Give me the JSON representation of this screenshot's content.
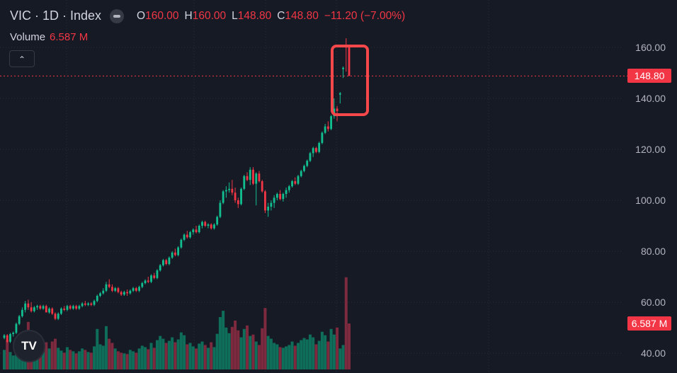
{
  "legend": {
    "symbol": "VIC · 1D · Index",
    "open_key": "O",
    "open": "160.00",
    "high_key": "H",
    "high": "160.00",
    "low_key": "L",
    "low": "148.80",
    "close_key": "C",
    "close": "148.80",
    "change": "−11.20 (−7.00%)",
    "volume_label": "Volume",
    "volume_value": "6.587 M",
    "collapse_icon": "chevron-up-icon"
  },
  "price_axis": {
    "ticks": [
      "160.00",
      "140.00",
      "120.00",
      "100.00",
      "80.00",
      "60.00",
      "40.00"
    ],
    "last_price_tag": "148.80",
    "volume_tag": "6.587 M"
  },
  "logo_text": "TV",
  "colors": {
    "up": "#12c08f",
    "down": "#f23645",
    "vol_up": "#0f6e59",
    "vol_down": "#7d2a3e",
    "highlight": "#f6474b",
    "grid": "#2a2e39"
  },
  "chart_data": {
    "type": "candlestick",
    "title": "VIC · 1D · Index",
    "ylim": [
      38,
      168
    ],
    "yticks": [
      40,
      60,
      80,
      100,
      120,
      140,
      160
    ],
    "last_price": 148.8,
    "volume_unit": "M",
    "highlight_last_candles": 2,
    "ohlcv": [
      [
        46,
        47.5,
        45.5,
        47,
        2.8
      ],
      [
        47,
        47.5,
        44,
        44.5,
        4.2
      ],
      [
        44.5,
        48,
        44,
        47.5,
        2.5
      ],
      [
        47.5,
        48.5,
        46.5,
        48,
        2.0
      ],
      [
        48,
        52,
        47.5,
        51.5,
        3.8
      ],
      [
        51.5,
        55,
        51,
        54.5,
        5.0
      ],
      [
        54.5,
        58,
        54,
        57,
        4.5
      ],
      [
        57,
        60.5,
        56,
        59.5,
        5.5
      ],
      [
        59.5,
        61,
        57,
        58,
        6.8
      ],
      [
        58,
        60,
        56,
        56.5,
        4.6
      ],
      [
        56.5,
        58.5,
        56,
        58,
        3.2
      ],
      [
        58,
        59,
        57,
        58.5,
        2.6
      ],
      [
        58.5,
        59,
        57,
        57.5,
        2.4
      ],
      [
        57.5,
        59,
        57,
        58.5,
        2.8
      ],
      [
        58.5,
        59,
        56,
        56,
        3.9
      ],
      [
        56,
        58,
        55.5,
        57.5,
        3.0
      ],
      [
        57.5,
        58,
        55,
        55.5,
        4.0
      ],
      [
        55.5,
        56,
        53,
        53.5,
        4.4
      ],
      [
        53.5,
        56,
        53,
        55.5,
        3.1
      ],
      [
        55.5,
        58,
        55,
        57.5,
        2.7
      ],
      [
        57.5,
        58.5,
        56.5,
        57,
        2.4
      ],
      [
        57,
        59,
        56.5,
        58.5,
        3.2
      ],
      [
        58.5,
        59,
        57,
        57.5,
        2.8
      ],
      [
        57.5,
        59,
        57,
        58.5,
        2.6
      ],
      [
        58.5,
        59,
        57,
        57.5,
        2.3
      ],
      [
        57.5,
        59,
        57,
        58.5,
        2.6
      ],
      [
        58.5,
        60,
        58,
        59.5,
        3.0
      ],
      [
        59.5,
        60.5,
        58.5,
        59,
        2.8
      ],
      [
        59,
        60,
        58.5,
        59.5,
        2.5
      ],
      [
        59.5,
        60,
        58.5,
        59,
        2.4
      ],
      [
        59,
        61,
        58.5,
        60.5,
        3.3
      ],
      [
        60.5,
        63,
        60,
        62.5,
        5.8
      ],
      [
        62.5,
        64,
        62,
        63.5,
        3.6
      ],
      [
        63.5,
        65.5,
        63,
        64.5,
        3.4
      ],
      [
        64.5,
        68,
        64,
        67,
        6.2
      ],
      [
        67,
        69,
        65.5,
        66,
        4.4
      ],
      [
        66,
        67,
        64,
        64.5,
        3.8
      ],
      [
        64.5,
        66,
        64,
        65.5,
        3.0
      ],
      [
        65.5,
        66,
        63.5,
        64,
        2.6
      ],
      [
        64,
        64.5,
        62.5,
        63,
        2.4
      ],
      [
        63,
        64.5,
        62.5,
        64,
        2.3
      ],
      [
        64,
        65,
        62.5,
        63.5,
        2.2
      ],
      [
        63.5,
        65,
        63,
        64.5,
        2.8
      ],
      [
        64.5,
        66,
        64,
        65.5,
        2.6
      ],
      [
        65.5,
        66,
        64,
        64.5,
        2.4
      ],
      [
        64.5,
        66.5,
        64,
        66,
        3.0
      ],
      [
        66,
        68,
        65.5,
        67.5,
        3.4
      ],
      [
        67.5,
        69,
        67,
        68.5,
        3.2
      ],
      [
        68.5,
        70,
        67.5,
        68,
        2.9
      ],
      [
        68,
        71,
        67.5,
        70.5,
        3.8
      ],
      [
        70.5,
        71.5,
        69,
        69.5,
        3.1
      ],
      [
        69.5,
        73,
        69,
        72.5,
        4.2
      ],
      [
        72.5,
        75,
        72,
        74.5,
        4.8
      ],
      [
        74.5,
        77,
        74,
        76.5,
        4.4
      ],
      [
        76.5,
        77,
        74.5,
        75,
        3.8
      ],
      [
        75,
        78,
        74.5,
        77.5,
        4.1
      ],
      [
        77.5,
        80,
        77,
        79.5,
        4.6
      ],
      [
        79.5,
        81,
        78,
        78.5,
        3.9
      ],
      [
        78.5,
        82,
        78,
        81.5,
        4.3
      ],
      [
        81.5,
        85,
        81,
        84.5,
        5.3
      ],
      [
        84.5,
        87,
        84,
        86.5,
        4.9
      ],
      [
        86.5,
        88,
        85,
        85.5,
        3.6
      ],
      [
        85.5,
        88,
        85,
        87.5,
        3.8
      ],
      [
        87.5,
        89,
        86.5,
        88.5,
        3.3
      ],
      [
        88.5,
        90,
        87,
        87.5,
        3.0
      ],
      [
        87.5,
        90.5,
        87,
        90,
        3.7
      ],
      [
        90,
        92,
        89,
        91.5,
        4.0
      ],
      [
        91.5,
        92,
        89.5,
        90,
        3.5
      ],
      [
        90,
        91,
        89,
        90.5,
        3.1
      ],
      [
        90.5,
        91,
        88.5,
        89,
        3.9
      ],
      [
        89,
        91,
        88.5,
        90.5,
        3.2
      ],
      [
        90.5,
        94,
        90,
        93.5,
        5.1
      ],
      [
        93.5,
        100,
        93,
        99,
        7.5
      ],
      [
        99,
        104,
        98.5,
        103.5,
        8.4
      ],
      [
        103.5,
        105.5,
        101,
        104,
        6.0
      ],
      [
        104,
        107,
        103,
        104.5,
        5.2
      ],
      [
        104.5,
        108,
        102,
        103,
        6.1
      ],
      [
        103,
        105,
        99,
        100,
        7.0
      ],
      [
        100,
        101,
        97,
        98.5,
        5.6
      ],
      [
        98.5,
        105,
        98,
        104.5,
        4.6
      ],
      [
        104.5,
        110,
        104,
        109.5,
        5.8
      ],
      [
        109.5,
        111,
        107.5,
        108,
        6.3
      ],
      [
        108,
        113,
        106,
        112,
        4.8
      ],
      [
        112,
        113,
        106,
        106.5,
        5.0
      ],
      [
        106.5,
        111,
        98,
        110.5,
        4.0
      ],
      [
        110.5,
        111.5,
        107,
        107.5,
        3.5
      ],
      [
        107.5,
        108,
        103,
        103.5,
        5.9
      ],
      [
        103.5,
        104,
        95,
        96,
        8.8
      ],
      [
        96,
        99,
        93.5,
        97.5,
        4.8
      ],
      [
        97.5,
        100,
        96,
        99,
        4.4
      ],
      [
        99,
        102,
        97,
        101,
        3.8
      ],
      [
        101,
        103,
        100,
        102.5,
        3.6
      ],
      [
        102.5,
        104,
        100,
        100.5,
        3.2
      ],
      [
        100.5,
        103,
        99.5,
        102.5,
        3.1
      ],
      [
        102.5,
        105,
        101,
        104,
        3.3
      ],
      [
        104,
        106,
        103,
        105.5,
        3.5
      ],
      [
        105.5,
        108,
        105,
        107.5,
        4.0
      ],
      [
        107.5,
        109,
        106,
        106.5,
        3.4
      ],
      [
        106.5,
        110,
        106,
        109.5,
        3.8
      ],
      [
        109.5,
        112,
        109,
        111.5,
        4.2
      ],
      [
        111.5,
        114,
        111,
        113.5,
        4.5
      ],
      [
        113.5,
        116,
        113,
        115.5,
        4.3
      ],
      [
        115.5,
        119,
        115,
        118.5,
        5.0
      ],
      [
        118.5,
        121,
        117,
        120.5,
        4.6
      ],
      [
        120.5,
        121,
        118.5,
        119,
        3.6
      ],
      [
        119,
        123,
        118.5,
        122.5,
        4.1
      ],
      [
        122.5,
        127,
        122,
        126.5,
        5.4
      ],
      [
        126.5,
        130,
        126,
        129,
        4.9
      ],
      [
        129,
        131,
        127,
        128,
        4.0
      ],
      [
        128,
        133.5,
        127.5,
        133,
        5.8
      ],
      [
        133,
        140,
        132,
        136,
        5.0
      ],
      [
        136,
        137,
        131,
        135,
        6.0
      ],
      [
        141.5,
        142.5,
        138,
        142,
        3.0
      ],
      [
        151.5,
        152.5,
        148,
        152,
        3.5
      ],
      [
        160.2,
        163.6,
        150.5,
        160,
        13.2
      ],
      [
        160,
        160,
        148.8,
        148.8,
        6.587
      ]
    ]
  }
}
